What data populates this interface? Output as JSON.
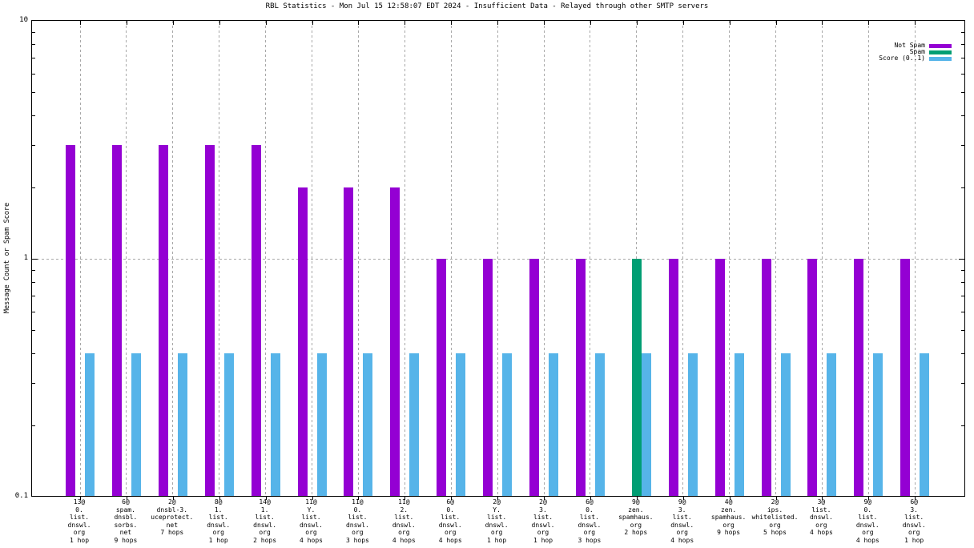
{
  "title": "RBL Statistics - Mon Jul 15 12:58:07 EDT 2024 - Insufficient Data - Relayed through other SMTP servers",
  "y_axis": {
    "label": "Message Count or Spam Score",
    "tick_labels": [
      "10",
      "1",
      "0.1"
    ],
    "tick_values": [
      10,
      1,
      0.1
    ]
  },
  "legend": {
    "position": "top-right-inside",
    "entries": [
      {
        "label": "Not Spam",
        "color": "#9400d3"
      },
      {
        "label": "Spam",
        "color": "#009e73"
      },
      {
        "label": "Score (0..1)",
        "color": "#56b4e9"
      }
    ]
  },
  "colors": {
    "not_spam": "#9400d3",
    "spam": "#009e73",
    "score": "#56b4e9",
    "grid": "#a8a8a8",
    "axis": "#000000"
  },
  "chart_data": {
    "type": "bar",
    "title": "RBL Statistics - Mon Jul 15 12:58:07 EDT 2024 - Insufficient Data - Relayed through other SMTP servers",
    "xlabel": "",
    "ylabel": "Message Count or Spam Score",
    "yscale": "log",
    "ylim": [
      0.1,
      10
    ],
    "grid": true,
    "legend_position": "top-right",
    "categories": [
      [
        "13@",
        "0.",
        "list.",
        "dnswl.",
        "org",
        "1 hop"
      ],
      [
        "6@",
        "spam.",
        "dnsbl.",
        "sorbs.",
        "net",
        "9 hops"
      ],
      [
        "2@",
        "dnsbl-3.",
        "uceprotect.",
        "net",
        "7 hops"
      ],
      [
        "8@",
        "1.",
        "list.",
        "dnswl.",
        "org",
        "1 hop"
      ],
      [
        "14@",
        "1.",
        "list.",
        "dnswl.",
        "org",
        "2 hops"
      ],
      [
        "11@",
        "Y.",
        "list.",
        "dnswl.",
        "org",
        "4 hops"
      ],
      [
        "11@",
        "0.",
        "list.",
        "dnswl.",
        "org",
        "3 hops"
      ],
      [
        "11@",
        "2.",
        "list.",
        "dnswl.",
        "org",
        "4 hops"
      ],
      [
        "6@",
        "0.",
        "list.",
        "dnswl.",
        "org",
        "4 hops"
      ],
      [
        "2@",
        "Y.",
        "list.",
        "dnswl.",
        "org",
        "1 hop"
      ],
      [
        "2@",
        "3.",
        "list.",
        "dnswl.",
        "org",
        "1 hop"
      ],
      [
        "6@",
        "0.",
        "list.",
        "dnswl.",
        "org",
        "3 hops"
      ],
      [
        "9@",
        "zen.",
        "spamhaus.",
        "org",
        "2 hops"
      ],
      [
        "9@",
        "3.",
        "list.",
        "dnswl.",
        "org",
        "4 hops"
      ],
      [
        "4@",
        "zen.",
        "spamhaus.",
        "org",
        "9 hops"
      ],
      [
        "2@",
        "ips.",
        "whitelisted.",
        "org",
        "5 hops"
      ],
      [
        "3@",
        "list.",
        "dnswl.",
        "org",
        "4 hops"
      ],
      [
        "9@",
        "0.",
        "list.",
        "dnswl.",
        "org",
        "4 hops"
      ],
      [
        "6@",
        "3.",
        "list.",
        "dnswl.",
        "org",
        "1 hop"
      ]
    ],
    "series": [
      {
        "name": "Not Spam",
        "color": "#9400d3",
        "values": [
          3,
          3,
          3,
          3,
          3,
          2,
          2,
          2,
          1,
          1,
          1,
          1,
          0,
          1,
          1,
          1,
          1,
          1,
          1
        ]
      },
      {
        "name": "Spam",
        "color": "#009e73",
        "values": [
          0,
          0,
          0,
          0,
          0,
          0,
          0,
          0,
          0,
          0,
          0,
          0,
          1,
          0,
          0,
          0,
          0,
          0,
          0
        ]
      },
      {
        "name": "Score (0..1)",
        "color": "#56b4e9",
        "values": [
          0.4,
          0.4,
          0.4,
          0.4,
          0.4,
          0.4,
          0.4,
          0.4,
          0.4,
          0.4,
          0.4,
          0.4,
          0.4,
          0.4,
          0.4,
          0.4,
          0.4,
          0.4,
          0.4
        ]
      }
    ]
  }
}
